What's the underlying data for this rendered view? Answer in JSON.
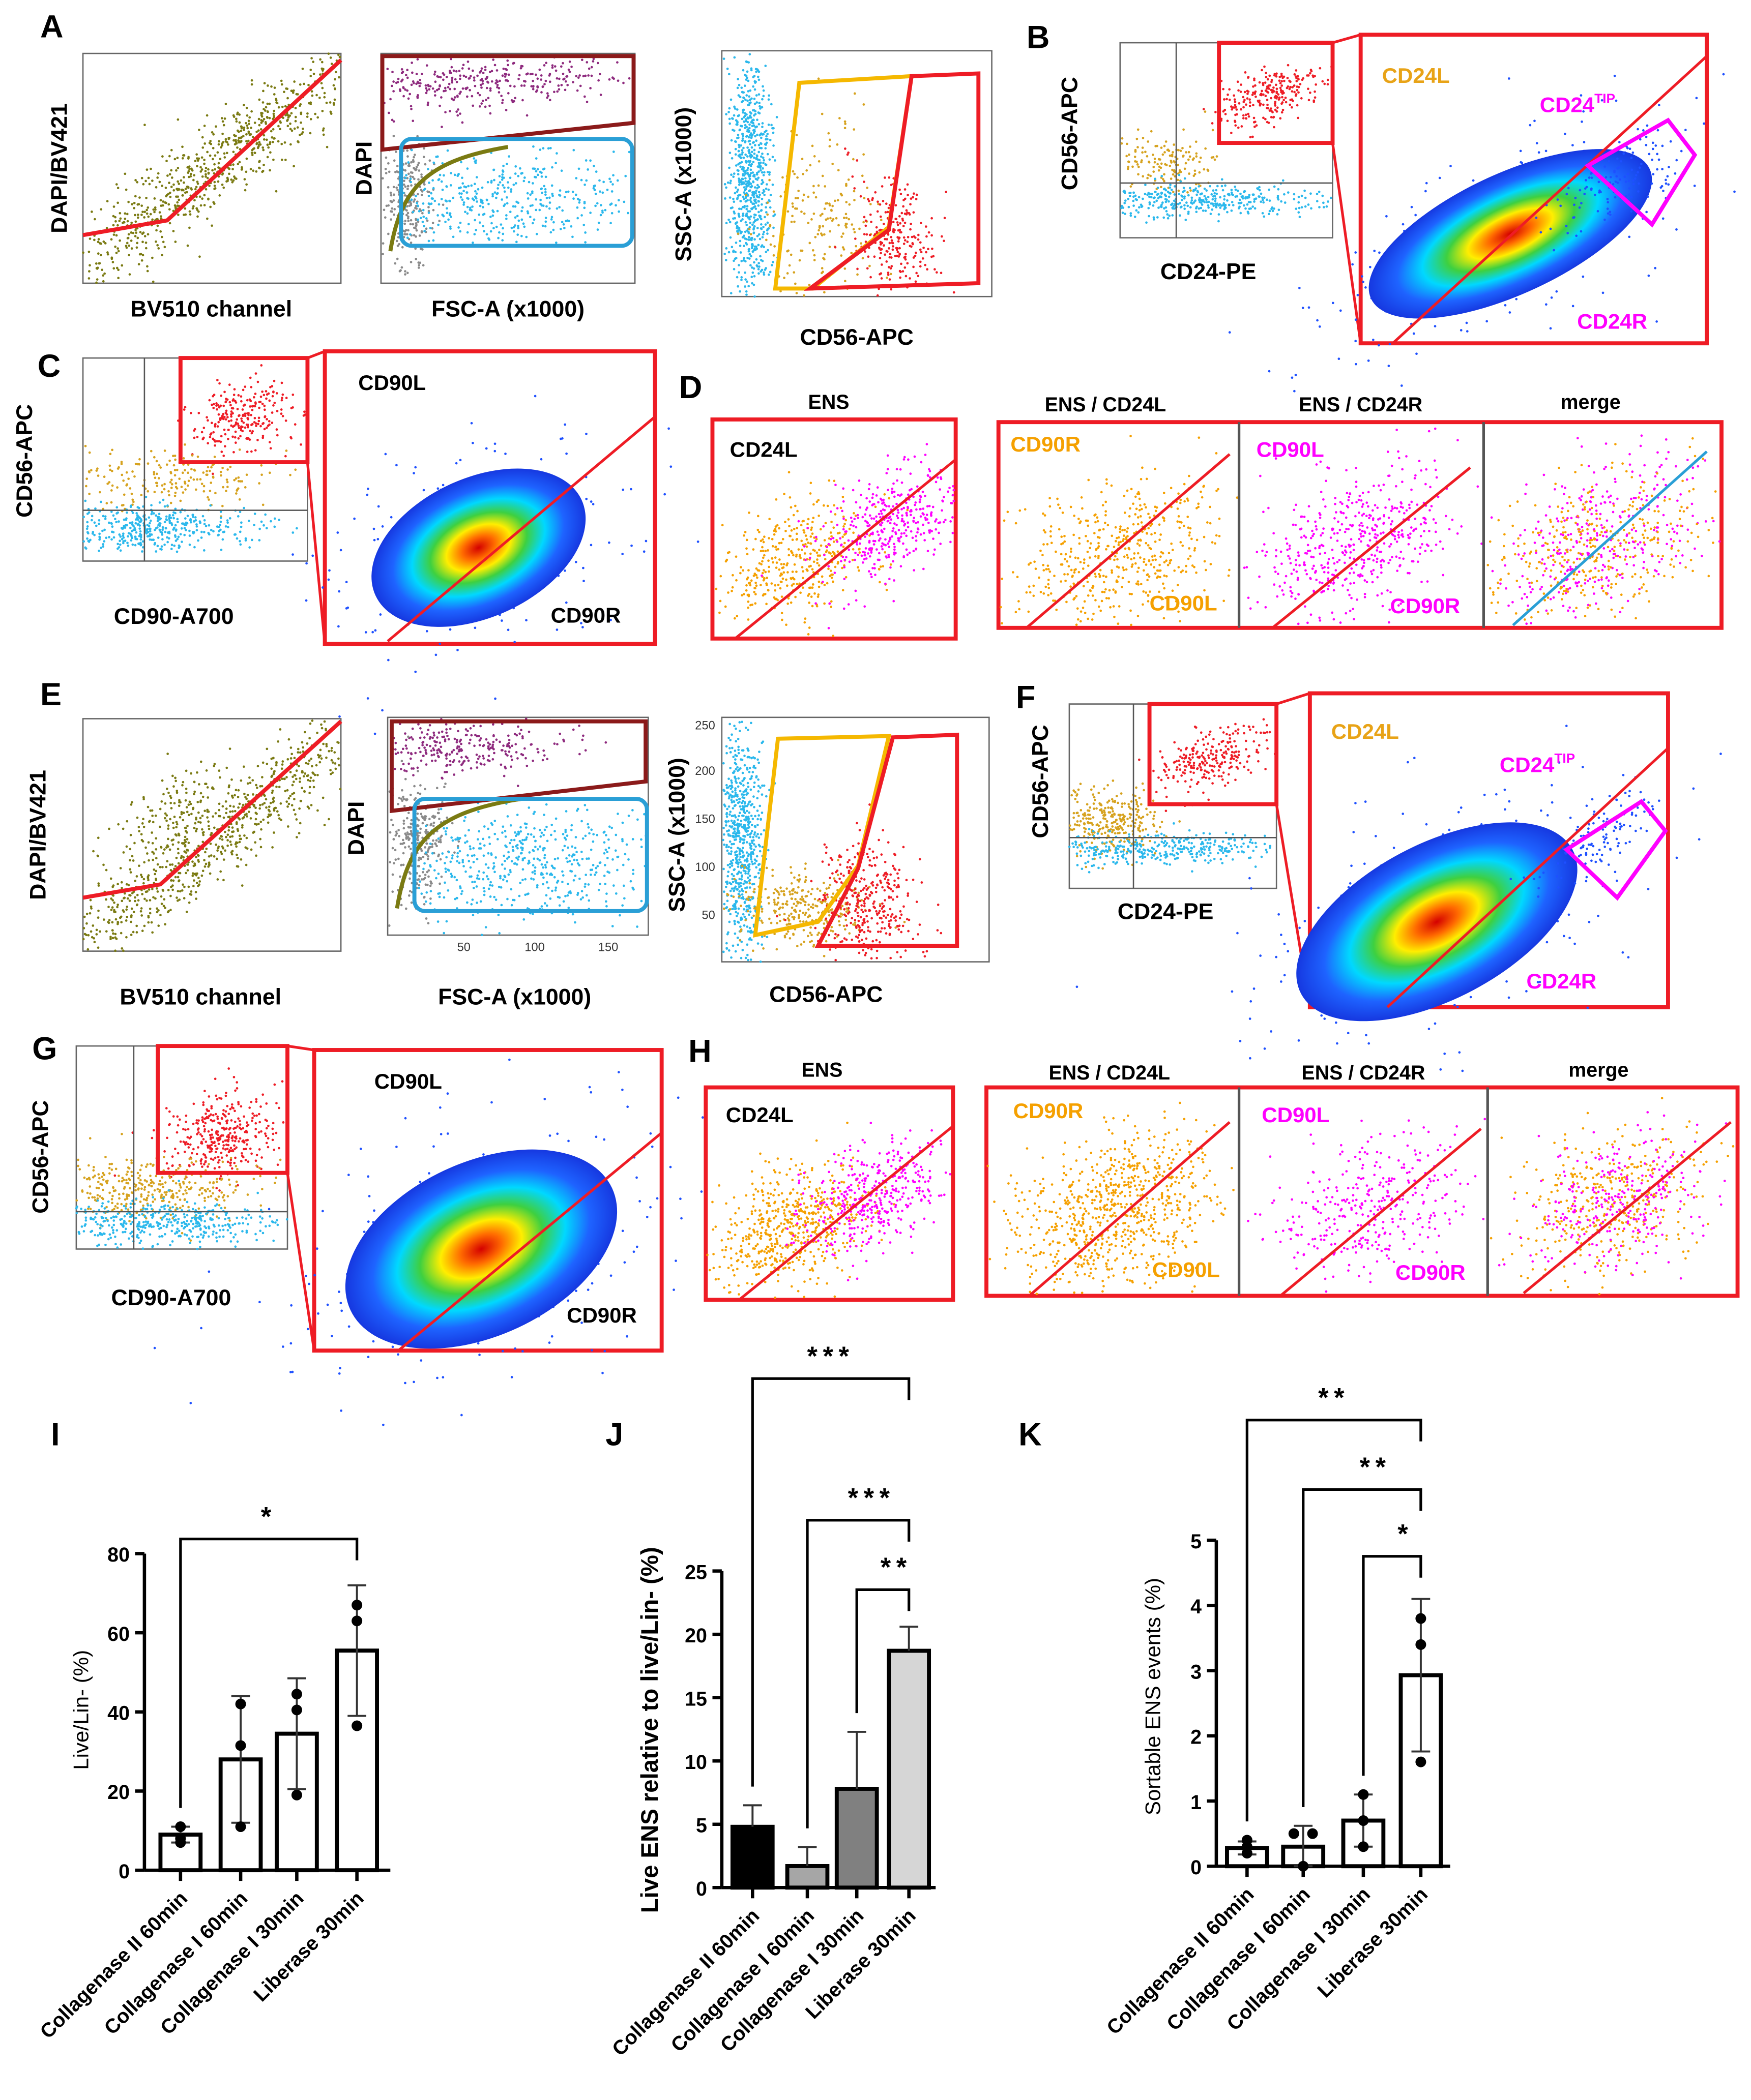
{
  "panel_labels": {
    "A": "A",
    "B": "B",
    "C": "C",
    "D": "D",
    "E": "E",
    "F": "F",
    "G": "G",
    "H": "H",
    "I": "I",
    "J": "J",
    "K": "K"
  },
  "axes": {
    "dapi_bv421": "DAPI/BV421",
    "bv510": "BV510 channel",
    "dapi": "DAPI",
    "fsc": "FSC-A (x1000)",
    "ssc": "SSC-A (x1000)",
    "cd56": "CD56-APC",
    "cd24": "CD24-PE",
    "cd90": "CD90-A700"
  },
  "gates": {
    "cd24l": "CD24L",
    "cd24tip_base": "CD24",
    "cd24tip_sup": "TIP",
    "cd24r": "CD24R",
    "cd90l": "CD90L",
    "cd90r": "CD90R"
  },
  "subheaders": {
    "ens": "ENS",
    "ens_cd24l": "ENS / CD24L",
    "ens_cd24r": "ENS / CD24R",
    "merge": "merge"
  },
  "ticks": {
    "fsc": [
      "50",
      "100",
      "150"
    ],
    "ssc": [
      "50",
      "100",
      "150",
      "200",
      "250"
    ]
  },
  "colors": {
    "gate_red": "#ee1c25",
    "olive": "#7a7a12",
    "purple": "#8e2a7e",
    "grey": "#8a8a8a",
    "cyan": "#2bb8ec",
    "tan": "#d6a21e",
    "orange": "#f5a000",
    "magenta": "#ff00ff",
    "dark_red_gate": "#8b1a1a",
    "blue_gate": "#2a9fd6",
    "yellow_gate": "#f5b800"
  },
  "chart_data": [
    {
      "type": "bar",
      "panel": "I",
      "categories": [
        "Collagenase II 60min",
        "Collagenase I 60min",
        "Collagenase I 30min",
        "Liberase 30min"
      ],
      "values": [
        9,
        28,
        34.5,
        55.5
      ],
      "sd": [
        2,
        16,
        14,
        16.5
      ],
      "points": [
        [
          7,
          8,
          11
        ],
        [
          11,
          31.5,
          42
        ],
        [
          19,
          40.5,
          44.5
        ],
        [
          36.5,
          63,
          67
        ]
      ],
      "bar_colors": [
        "#ffffff",
        "#ffffff",
        "#ffffff",
        "#ffffff"
      ],
      "ylabel": "Live/Lin- (%)",
      "xlabel": "",
      "ylim": [
        0,
        80
      ],
      "yticks": [
        0,
        20,
        40,
        60,
        80
      ],
      "significance": [
        {
          "from": 0,
          "to": 3,
          "label": "*"
        }
      ]
    },
    {
      "type": "bar",
      "panel": "J",
      "categories": [
        "Collagenase II 60min",
        "Collagenase I 60min",
        "Collagenase I 30min",
        "Liberase 30min"
      ],
      "values": [
        4.8,
        1.7,
        7.8,
        18.7
      ],
      "sd": [
        1.7,
        1.5,
        4.5,
        1.9
      ],
      "points": [],
      "bar_colors": [
        "#000000",
        "#a6a6a6",
        "#808080",
        "#d6d6d6"
      ],
      "ylabel": "Live ENS relative to live/Lin- (%)",
      "xlabel": "",
      "ylim": [
        0,
        25
      ],
      "yticks": [
        0,
        5,
        10,
        15,
        20,
        25
      ],
      "significance": [
        {
          "from": 0,
          "to": 3,
          "label": "***"
        },
        {
          "from": 1,
          "to": 3,
          "label": "***"
        },
        {
          "from": 2,
          "to": 3,
          "label": "**"
        }
      ]
    },
    {
      "type": "bar",
      "panel": "K",
      "categories": [
        "Collagenase II 60min",
        "Collagenase I 60min",
        "Collagenase I 30min",
        "Liberase 30min"
      ],
      "values": [
        0.28,
        0.3,
        0.7,
        2.93
      ],
      "sd": [
        0.1,
        0.32,
        0.4,
        1.17
      ],
      "points": [
        [
          0.2,
          0.3,
          0.4
        ],
        [
          0,
          0.5,
          0.5
        ],
        [
          0.3,
          0.7,
          1.1
        ],
        [
          1.6,
          3.4,
          3.8
        ]
      ],
      "bar_colors": [
        "#ffffff",
        "#ffffff",
        "#ffffff",
        "#ffffff"
      ],
      "ylabel": "Sortable ENS events (%)",
      "xlabel": "",
      "ylim": [
        0,
        5
      ],
      "yticks": [
        0,
        1,
        2,
        3,
        4,
        5
      ],
      "significance": [
        {
          "from": 0,
          "to": 3,
          "label": "**"
        },
        {
          "from": 1,
          "to": 3,
          "label": "**"
        },
        {
          "from": 2,
          "to": 3,
          "label": "*"
        }
      ]
    }
  ]
}
